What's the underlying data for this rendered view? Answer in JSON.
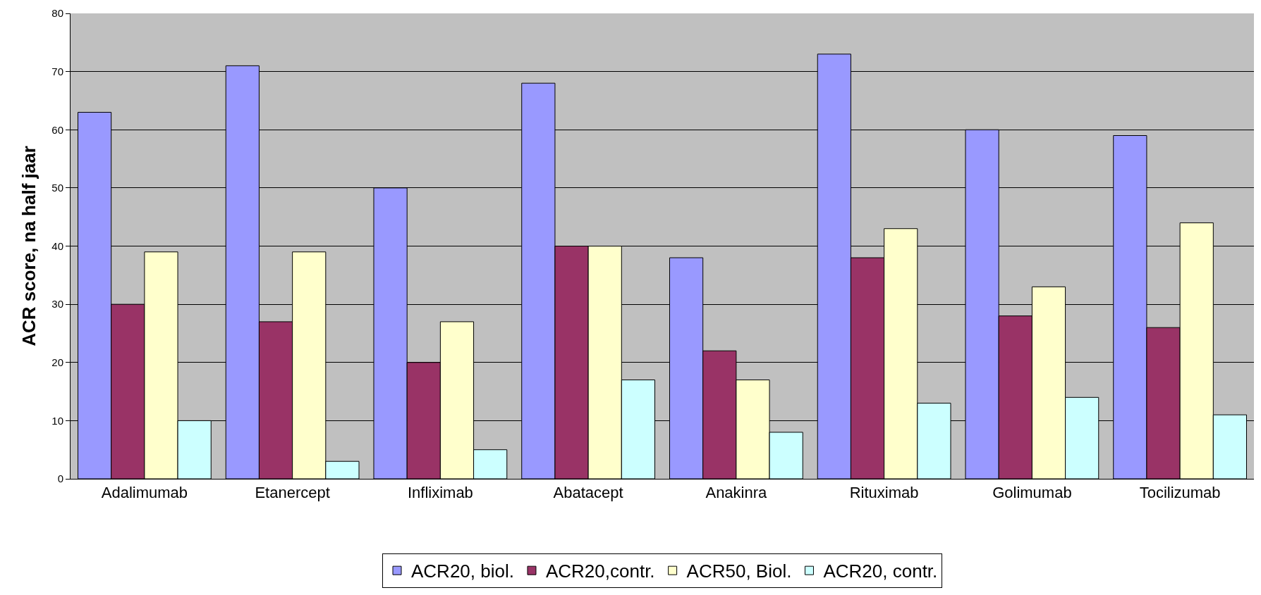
{
  "chart_data": {
    "type": "bar",
    "ylabel": "ACR score, na half jaar",
    "categories": [
      "Adalimumab",
      "Etanercept",
      "Infliximab",
      "Abatacept",
      "Anakinra",
      "Rituximab",
      "Golimumab",
      "Tocilizumab"
    ],
    "series": [
      {
        "name": "ACR20, biol.",
        "color": "#9999ff",
        "values": [
          63,
          71,
          50,
          68,
          38,
          73,
          60,
          59
        ]
      },
      {
        "name": "ACR20,contr.",
        "color": "#993366",
        "values": [
          30,
          27,
          20,
          40,
          22,
          38,
          28,
          26
        ]
      },
      {
        "name": "ACR50, Biol.",
        "color": "#ffffcc",
        "values": [
          39,
          39,
          27,
          40,
          17,
          43,
          33,
          44
        ]
      },
      {
        "name": "ACR20, contr.",
        "color": "#ccffff",
        "values": [
          10,
          3,
          5,
          17,
          8,
          13,
          14,
          11
        ]
      }
    ],
    "ylim": [
      0,
      80
    ],
    "yticks": [
      0,
      10,
      20,
      30,
      40,
      50,
      60,
      70,
      80
    ],
    "grid": "y",
    "legend": "bottom"
  }
}
